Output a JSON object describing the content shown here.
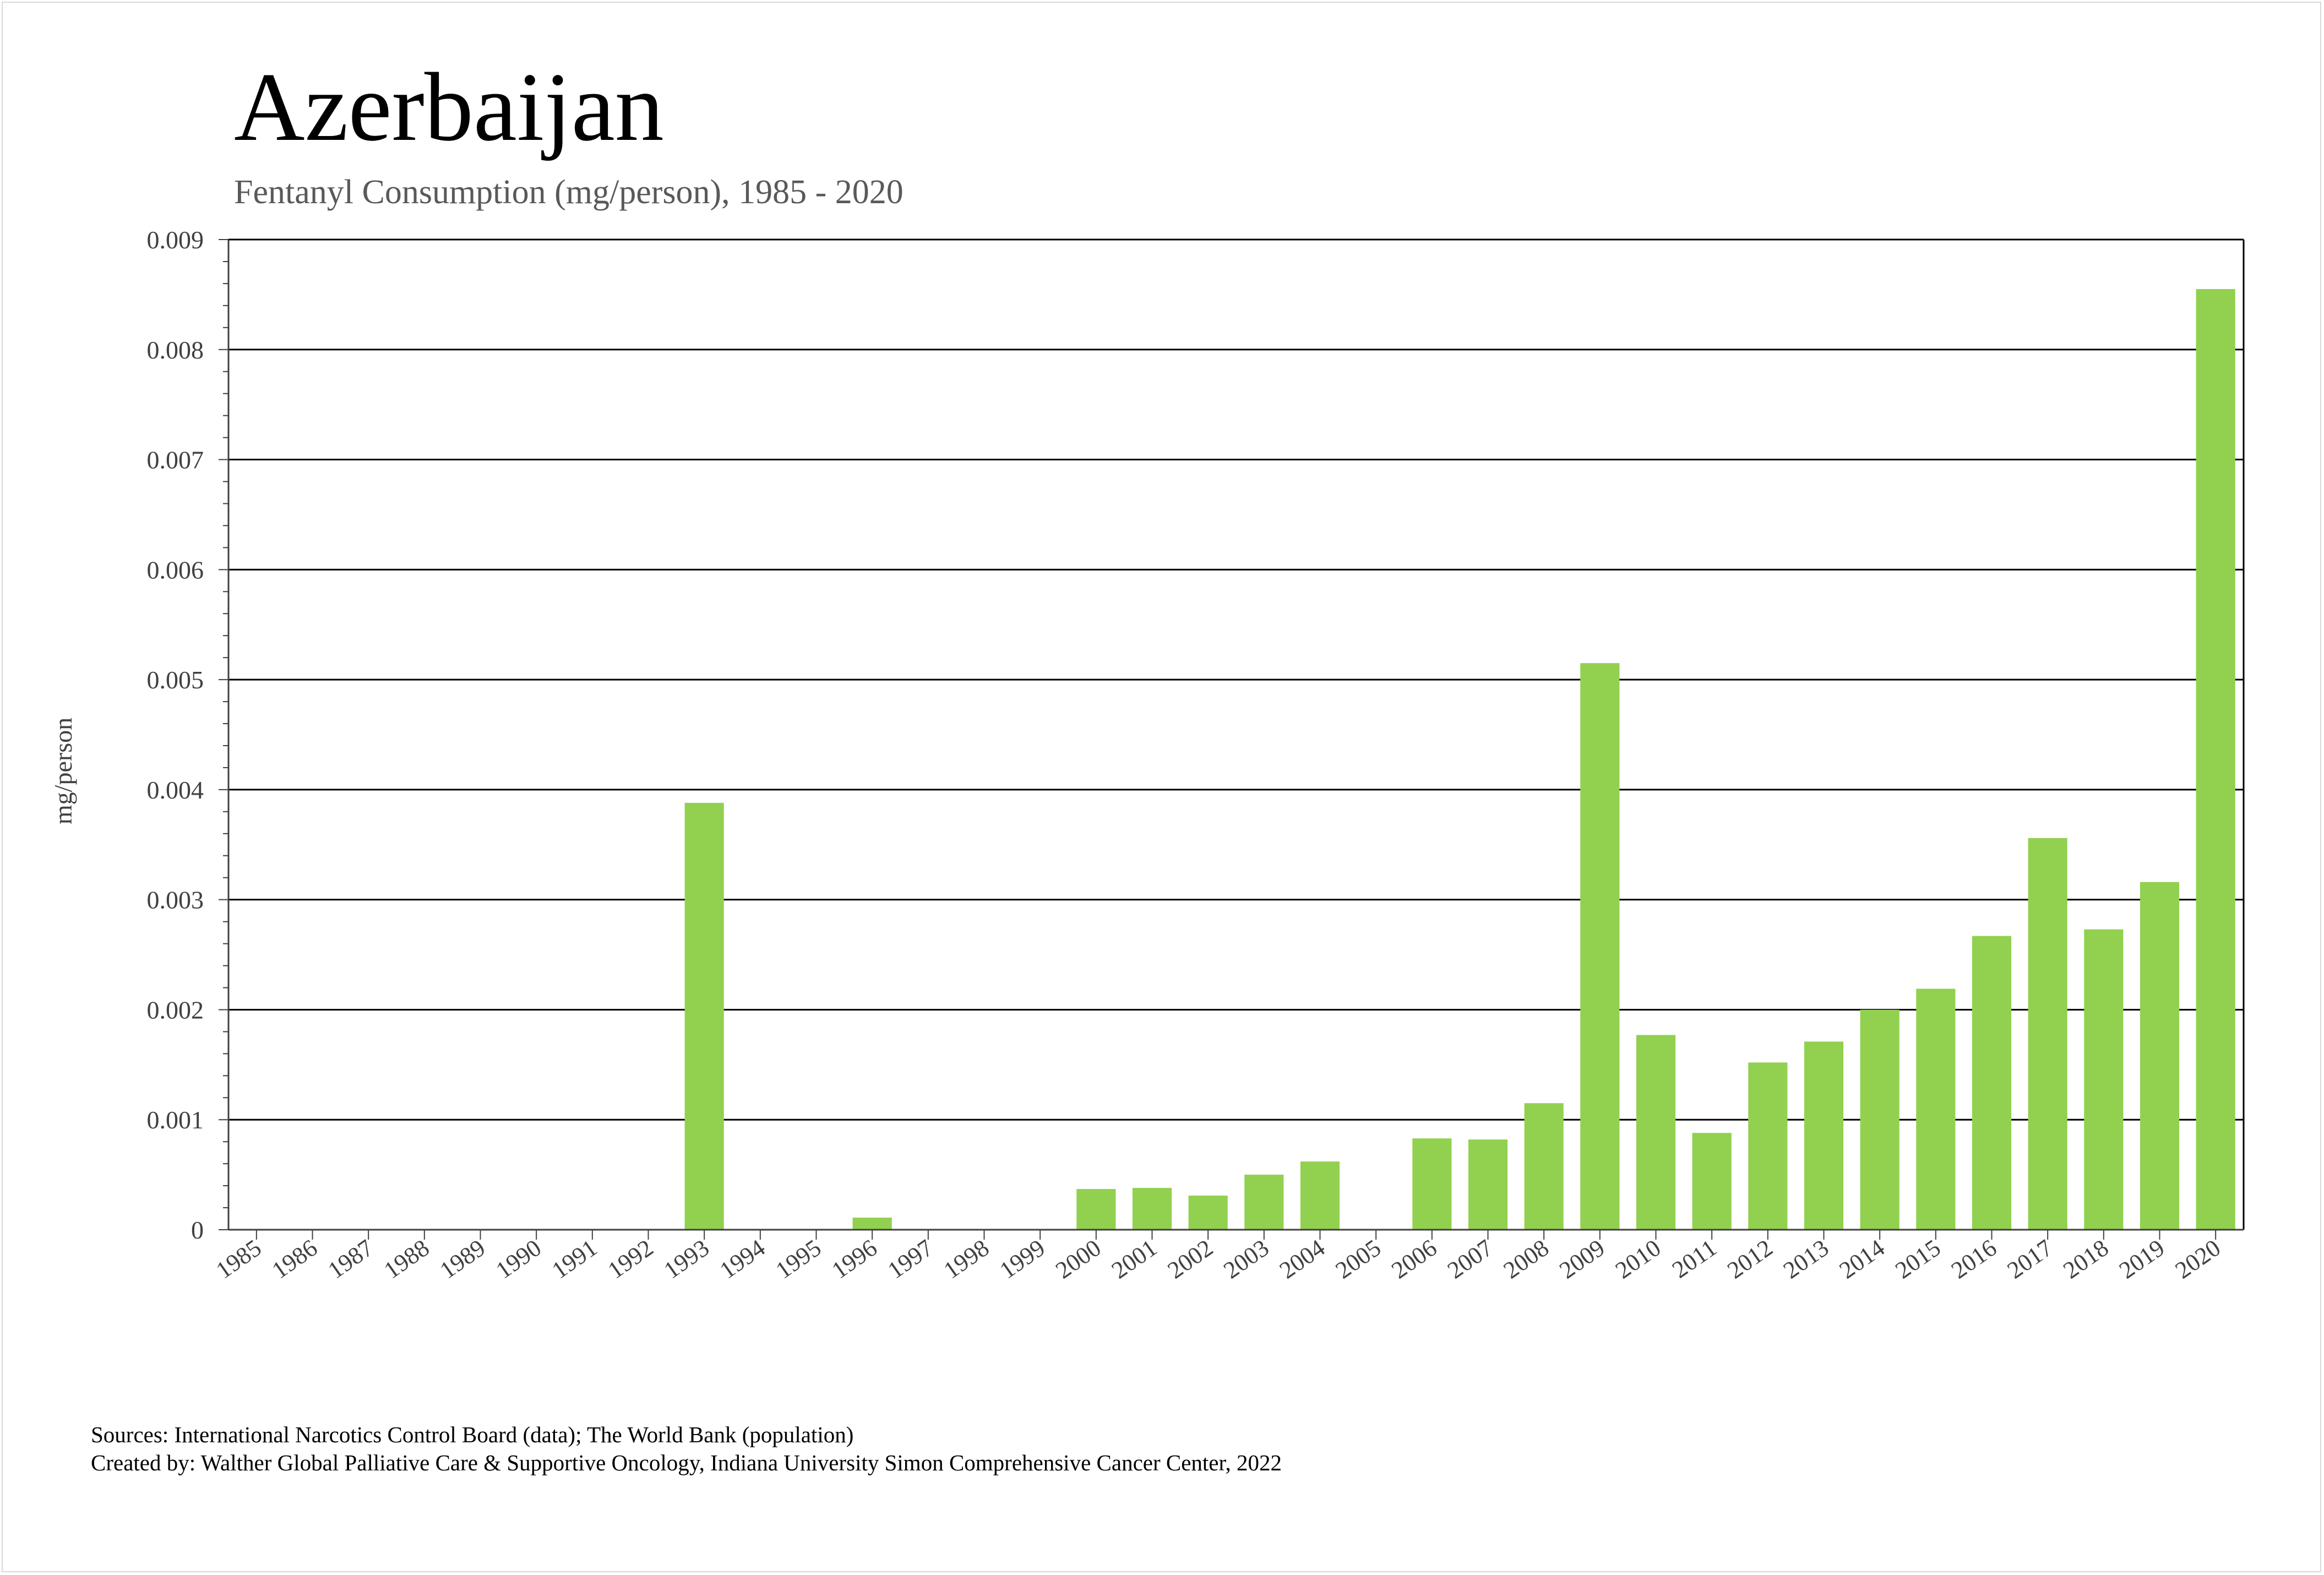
{
  "title": "Azerbaijan",
  "subtitle": "Fentanyl Consumption (mg/person), 1985 - 2020",
  "footer": {
    "sources": "Sources: International Narcotics Control Board (data); The World Bank (population)",
    "created_by": "Created by: Walther Global Palliative Care & Supportive Oncology, Indiana University Simon Comprehensive Cancer Center, 2022"
  },
  "colors": {
    "bar": "#92d050",
    "gridline": "#000000",
    "axis_text": "#404040",
    "subtitle": "#595959"
  },
  "chart_data": {
    "type": "bar",
    "ylabel": "mg/person",
    "xlabel": "",
    "ylim": [
      0,
      0.009
    ],
    "y_ticks": [
      "0",
      "0.001",
      "0.002",
      "0.003",
      "0.004",
      "0.005",
      "0.006",
      "0.007",
      "0.008",
      "0.009"
    ],
    "grid": "horizontal major gridlines",
    "legend": "none",
    "categories": [
      "1985",
      "1986",
      "1987",
      "1988",
      "1989",
      "1990",
      "1991",
      "1992",
      "1993",
      "1994",
      "1995",
      "1996",
      "1997",
      "1998",
      "1999",
      "2000",
      "2001",
      "2002",
      "2003",
      "2004",
      "2005",
      "2006",
      "2007",
      "2008",
      "2009",
      "2010",
      "2011",
      "2012",
      "2013",
      "2014",
      "2015",
      "2016",
      "2017",
      "2018",
      "2019",
      "2020"
    ],
    "values": [
      0,
      0,
      0,
      0,
      0,
      0,
      0,
      0,
      0.00388,
      0,
      0,
      0.00011,
      0,
      0,
      0,
      0.00037,
      0.00038,
      0.00031,
      0.0005,
      0.00062,
      0,
      0.00083,
      0.00082,
      0.00115,
      0.00515,
      0.00177,
      0.00088,
      0.00152,
      0.00171,
      0.002,
      0.00219,
      0.00267,
      0.00356,
      0.00273,
      0.00316,
      0.00855
    ]
  }
}
